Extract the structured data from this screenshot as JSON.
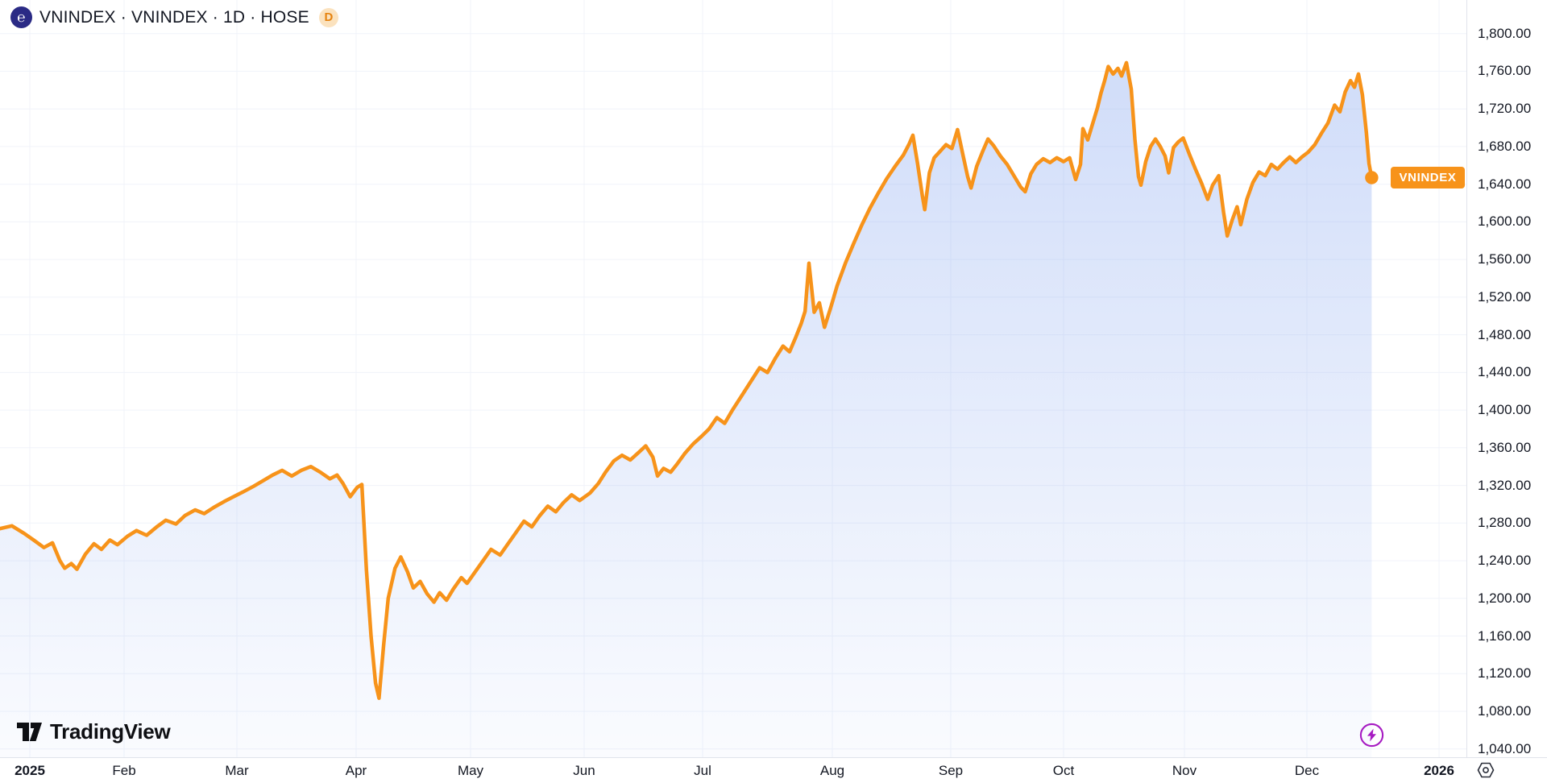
{
  "header": {
    "title": "VNINDEX · VNINDEX · 1D · HOSE",
    "interval_badge": "D",
    "source_logo_glyph": "℮"
  },
  "price_label": {
    "text": "VNINDEX"
  },
  "watermark": {
    "text": "TradingView"
  },
  "icons": {
    "boost": "lightning-icon",
    "scale_settings": "gear-hexagon-icon"
  },
  "colors": {
    "line": "#F7931A",
    "marker": "#F7931A",
    "fill_base": "126,160,238",
    "grid": "#F0F3FA",
    "axis_border": "#E0E3EB",
    "boost_purple": "#A61BC2",
    "logo_blue": "#2A2A85",
    "badge_bg": "#FBE2BE",
    "badge_text": "#E5820E"
  },
  "axis": {
    "price_ticks": [
      "1,800.00",
      "1,760.00",
      "1,720.00",
      "1,680.00",
      "1,640.00",
      "1,600.00",
      "1,560.00",
      "1,520.00",
      "1,480.00",
      "1,440.00",
      "1,400.00",
      "1,360.00",
      "1,320.00",
      "1,280.00",
      "1,240.00",
      "1,200.00",
      "1,160.00",
      "1,120.00",
      "1,080.00",
      "1,040.00"
    ],
    "time_ticks": [
      {
        "label": "2025",
        "bold": true
      },
      {
        "label": "Feb"
      },
      {
        "label": "Mar"
      },
      {
        "label": "Apr"
      },
      {
        "label": "May"
      },
      {
        "label": "Jun"
      },
      {
        "label": "Jul"
      },
      {
        "label": "Aug"
      },
      {
        "label": "Sep"
      },
      {
        "label": "Oct"
      },
      {
        "label": "Nov"
      },
      {
        "label": "Dec"
      },
      {
        "label": "2026",
        "bold": true
      }
    ]
  },
  "chart_data": {
    "type": "area",
    "series_name": "VNINDEX",
    "exchange": "HOSE",
    "interval": "1D",
    "title": "VNINDEX · VNINDEX · 1D · HOSE",
    "ylim": [
      1040,
      1800
    ],
    "y_tick_step": 40,
    "y_ticks": [
      1800,
      1760,
      1720,
      1680,
      1640,
      1600,
      1560,
      1520,
      1480,
      1440,
      1400,
      1360,
      1320,
      1280,
      1240,
      1200,
      1160,
      1120,
      1080,
      1040
    ],
    "x_ticks": [
      "2025",
      "Feb",
      "Mar",
      "Apr",
      "May",
      "Jun",
      "Jul",
      "Aug",
      "Sep",
      "Oct",
      "Nov",
      "Dec",
      "2026"
    ],
    "t_unit": "decimal months from 2025-01-01 (0 = Jan 2025, 11 = Dec 2025)",
    "last_value": 1647,
    "grid": true,
    "legend_position": "top-left",
    "points": [
      [
        -0.32,
        1274
      ],
      [
        -0.19,
        1277
      ],
      [
        -0.06,
        1269
      ],
      [
        0.04,
        1262
      ],
      [
        0.15,
        1254
      ],
      [
        0.24,
        1259
      ],
      [
        0.32,
        1240
      ],
      [
        0.37,
        1232
      ],
      [
        0.44,
        1237
      ],
      [
        0.5,
        1231
      ],
      [
        0.59,
        1247
      ],
      [
        0.68,
        1258
      ],
      [
        0.76,
        1252
      ],
      [
        0.85,
        1262
      ],
      [
        0.93,
        1257
      ],
      [
        1.03,
        1266
      ],
      [
        1.11,
        1272
      ],
      [
        1.2,
        1267
      ],
      [
        1.29,
        1276
      ],
      [
        1.37,
        1283
      ],
      [
        1.46,
        1279
      ],
      [
        1.54,
        1288
      ],
      [
        1.63,
        1294
      ],
      [
        1.71,
        1290
      ],
      [
        1.8,
        1297
      ],
      [
        1.89,
        1303
      ],
      [
        1.97,
        1308
      ],
      [
        2.05,
        1313
      ],
      [
        2.14,
        1319
      ],
      [
        2.22,
        1325
      ],
      [
        2.3,
        1331
      ],
      [
        2.38,
        1336
      ],
      [
        2.46,
        1330
      ],
      [
        2.54,
        1336
      ],
      [
        2.62,
        1340
      ],
      [
        2.7,
        1334
      ],
      [
        2.78,
        1327
      ],
      [
        2.84,
        1331
      ],
      [
        2.89,
        1322
      ],
      [
        2.95,
        1308
      ],
      [
        3.01,
        1318
      ],
      [
        3.05,
        1321
      ],
      [
        3.09,
        1230
      ],
      [
        3.13,
        1160
      ],
      [
        3.17,
        1110
      ],
      [
        3.2,
        1094
      ],
      [
        3.24,
        1150
      ],
      [
        3.28,
        1200
      ],
      [
        3.34,
        1232
      ],
      [
        3.39,
        1244
      ],
      [
        3.45,
        1228
      ],
      [
        3.5,
        1211
      ],
      [
        3.56,
        1218
      ],
      [
        3.62,
        1205
      ],
      [
        3.68,
        1196
      ],
      [
        3.73,
        1206
      ],
      [
        3.79,
        1198
      ],
      [
        3.85,
        1210
      ],
      [
        3.92,
        1222
      ],
      [
        3.97,
        1216
      ],
      [
        4.04,
        1228
      ],
      [
        4.11,
        1240
      ],
      [
        4.18,
        1252
      ],
      [
        4.26,
        1246
      ],
      [
        4.33,
        1258
      ],
      [
        4.4,
        1270
      ],
      [
        4.47,
        1282
      ],
      [
        4.54,
        1276
      ],
      [
        4.61,
        1288
      ],
      [
        4.68,
        1298
      ],
      [
        4.75,
        1292
      ],
      [
        4.82,
        1302
      ],
      [
        4.89,
        1310
      ],
      [
        4.96,
        1304
      ],
      [
        5.05,
        1312
      ],
      [
        5.12,
        1322
      ],
      [
        5.18,
        1334
      ],
      [
        5.25,
        1346
      ],
      [
        5.32,
        1352
      ],
      [
        5.39,
        1347
      ],
      [
        5.46,
        1355
      ],
      [
        5.52,
        1362
      ],
      [
        5.58,
        1350
      ],
      [
        5.62,
        1330
      ],
      [
        5.67,
        1338
      ],
      [
        5.73,
        1334
      ],
      [
        5.78,
        1342
      ],
      [
        5.85,
        1354
      ],
      [
        5.92,
        1364
      ],
      [
        5.99,
        1372
      ],
      [
        6.05,
        1380
      ],
      [
        6.11,
        1392
      ],
      [
        6.17,
        1386
      ],
      [
        6.23,
        1400
      ],
      [
        6.3,
        1415
      ],
      [
        6.37,
        1430
      ],
      [
        6.44,
        1445
      ],
      [
        6.5,
        1440
      ],
      [
        6.56,
        1455
      ],
      [
        6.62,
        1468
      ],
      [
        6.67,
        1462
      ],
      [
        6.72,
        1478
      ],
      [
        6.76,
        1492
      ],
      [
        6.79,
        1505
      ],
      [
        6.82,
        1556
      ],
      [
        6.86,
        1504
      ],
      [
        6.9,
        1514
      ],
      [
        6.94,
        1488
      ],
      [
        6.99,
        1510
      ],
      [
        7.04,
        1532
      ],
      [
        7.11,
        1556
      ],
      [
        7.18,
        1577
      ],
      [
        7.25,
        1597
      ],
      [
        7.32,
        1615
      ],
      [
        7.39,
        1631
      ],
      [
        7.46,
        1646
      ],
      [
        7.53,
        1659
      ],
      [
        7.6,
        1671
      ],
      [
        7.65,
        1683
      ],
      [
        7.68,
        1692
      ],
      [
        7.72,
        1662
      ],
      [
        7.76,
        1628
      ],
      [
        7.78,
        1613
      ],
      [
        7.82,
        1652
      ],
      [
        7.86,
        1668
      ],
      [
        7.91,
        1675
      ],
      [
        7.96,
        1682
      ],
      [
        8.01,
        1678
      ],
      [
        8.06,
        1698
      ],
      [
        8.11,
        1670
      ],
      [
        8.15,
        1648
      ],
      [
        8.18,
        1636
      ],
      [
        8.23,
        1659
      ],
      [
        8.28,
        1674
      ],
      [
        8.33,
        1688
      ],
      [
        8.38,
        1681
      ],
      [
        8.44,
        1670
      ],
      [
        8.5,
        1661
      ],
      [
        8.56,
        1649
      ],
      [
        8.62,
        1637
      ],
      [
        8.66,
        1632
      ],
      [
        8.71,
        1651
      ],
      [
        8.76,
        1661
      ],
      [
        8.82,
        1667
      ],
      [
        8.88,
        1663
      ],
      [
        8.94,
        1668
      ],
      [
        9.0,
        1664
      ],
      [
        9.05,
        1668
      ],
      [
        9.1,
        1645
      ],
      [
        9.14,
        1661
      ],
      [
        9.16,
        1699
      ],
      [
        9.2,
        1687
      ],
      [
        9.24,
        1704
      ],
      [
        9.28,
        1721
      ],
      [
        9.31,
        1737
      ],
      [
        9.34,
        1750
      ],
      [
        9.37,
        1765
      ],
      [
        9.41,
        1757
      ],
      [
        9.45,
        1763
      ],
      [
        9.48,
        1755
      ],
      [
        9.52,
        1769
      ],
      [
        9.56,
        1741
      ],
      [
        9.59,
        1688
      ],
      [
        9.62,
        1648
      ],
      [
        9.64,
        1639
      ],
      [
        9.68,
        1664
      ],
      [
        9.72,
        1680
      ],
      [
        9.76,
        1688
      ],
      [
        9.8,
        1680
      ],
      [
        9.84,
        1670
      ],
      [
        9.87,
        1652
      ],
      [
        9.91,
        1679
      ],
      [
        9.95,
        1685
      ],
      [
        9.99,
        1689
      ],
      [
        10.04,
        1672
      ],
      [
        10.09,
        1656
      ],
      [
        10.14,
        1641
      ],
      [
        10.19,
        1624
      ],
      [
        10.23,
        1639
      ],
      [
        10.28,
        1649
      ],
      [
        10.32,
        1610
      ],
      [
        10.35,
        1585
      ],
      [
        10.39,
        1602
      ],
      [
        10.43,
        1616
      ],
      [
        10.46,
        1597
      ],
      [
        10.51,
        1624
      ],
      [
        10.56,
        1642
      ],
      [
        10.61,
        1653
      ],
      [
        10.66,
        1649
      ],
      [
        10.71,
        1661
      ],
      [
        10.76,
        1656
      ],
      [
        10.81,
        1663
      ],
      [
        10.86,
        1669
      ],
      [
        10.91,
        1663
      ],
      [
        10.96,
        1669
      ],
      [
        11.01,
        1674
      ],
      [
        11.06,
        1682
      ],
      [
        11.11,
        1694
      ],
      [
        11.16,
        1705
      ],
      [
        11.21,
        1724
      ],
      [
        11.25,
        1717
      ],
      [
        11.29,
        1738
      ],
      [
        11.33,
        1750
      ],
      [
        11.36,
        1743
      ],
      [
        11.39,
        1757
      ],
      [
        11.42,
        1735
      ],
      [
        11.45,
        1695
      ],
      [
        11.47,
        1662
      ],
      [
        11.49,
        1647
      ]
    ]
  }
}
